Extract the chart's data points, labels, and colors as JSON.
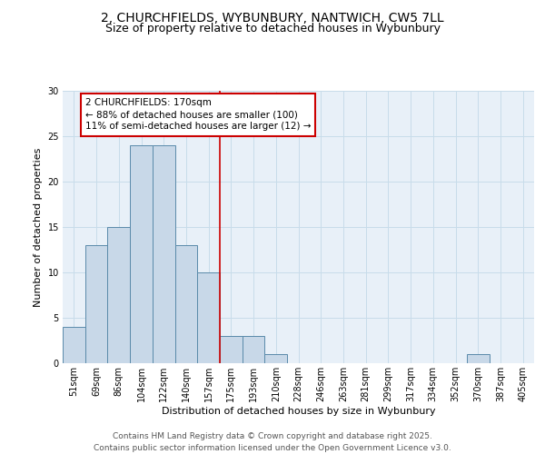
{
  "title_line1": "2, CHURCHFIELDS, WYBUNBURY, NANTWICH, CW5 7LL",
  "title_line2": "Size of property relative to detached houses in Wybunbury",
  "xlabel": "Distribution of detached houses by size in Wybunbury",
  "ylabel": "Number of detached properties",
  "bar_labels": [
    "51sqm",
    "69sqm",
    "86sqm",
    "104sqm",
    "122sqm",
    "140sqm",
    "157sqm",
    "175sqm",
    "193sqm",
    "210sqm",
    "228sqm",
    "246sqm",
    "263sqm",
    "281sqm",
    "299sqm",
    "317sqm",
    "334sqm",
    "352sqm",
    "370sqm",
    "387sqm",
    "405sqm"
  ],
  "bar_values": [
    4,
    13,
    15,
    24,
    24,
    13,
    10,
    3,
    3,
    1,
    0,
    0,
    0,
    0,
    0,
    0,
    0,
    0,
    1,
    0,
    0
  ],
  "bar_color": "#c8d8e8",
  "bar_edge_color": "#5a8aaa",
  "grid_color": "#c8dcea",
  "background_color": "#e8f0f8",
  "vline_color": "#cc0000",
  "vline_pos": 6.5,
  "annotation_text": "2 CHURCHFIELDS: 170sqm\n← 88% of detached houses are smaller (100)\n11% of semi-detached houses are larger (12) →",
  "annotation_box_facecolor": "#ffffff",
  "annotation_box_edgecolor": "#cc0000",
  "ylim": [
    0,
    30
  ],
  "yticks": [
    0,
    5,
    10,
    15,
    20,
    25,
    30
  ],
  "footer_text": "Contains HM Land Registry data © Crown copyright and database right 2025.\nContains public sector information licensed under the Open Government Licence v3.0.",
  "title_fontsize": 10,
  "subtitle_fontsize": 9,
  "axis_label_fontsize": 8,
  "tick_fontsize": 7,
  "annotation_fontsize": 7.5,
  "footer_fontsize": 6.5
}
